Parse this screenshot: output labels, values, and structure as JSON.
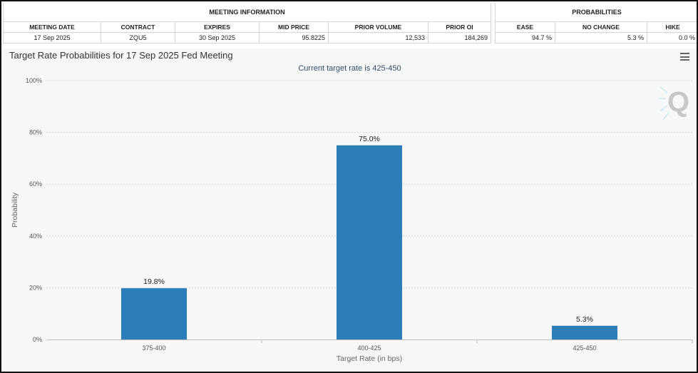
{
  "meeting_info": {
    "group_label": "MEETING INFORMATION",
    "headers": [
      "MEETING DATE",
      "CONTRACT",
      "EXPIRES",
      "MID PRICE",
      "PRIOR VOLUME",
      "PRIOR OI"
    ],
    "values": [
      "17 Sep 2025",
      "ZQU5",
      "30 Sep 2025",
      "95.8225",
      "12,533",
      "184,269"
    ]
  },
  "probabilities": {
    "group_label": "PROBABILITIES",
    "headers": [
      "EASE",
      "NO CHANGE",
      "HIKE"
    ],
    "values": [
      "94.7 %",
      "5.3 %",
      "0.0 %"
    ]
  },
  "chart": {
    "menu_icon": "hamburger-menu-icon",
    "watermark_icon": "q-logo-icon",
    "bar_color": "#2b7eb8"
  },
  "chart_data": {
    "type": "bar",
    "title": "Target Rate Probabilities for 17 Sep 2025 Fed Meeting",
    "subtitle": "Current target rate is 425-450",
    "xlabel": "Target Rate (in bps)",
    "ylabel": "Probability",
    "categories": [
      "375-400",
      "400-425",
      "425-450"
    ],
    "values": [
      19.8,
      75.0,
      5.3
    ],
    "data_labels": [
      "19.8%",
      "75.0%",
      "5.3%"
    ],
    "ylim": [
      0,
      100
    ],
    "yticks": [
      0,
      20,
      40,
      60,
      80,
      100
    ],
    "ytick_labels": [
      "0%",
      "20%",
      "40%",
      "60%",
      "80%",
      "100%"
    ],
    "grid": true,
    "legend": "none"
  }
}
